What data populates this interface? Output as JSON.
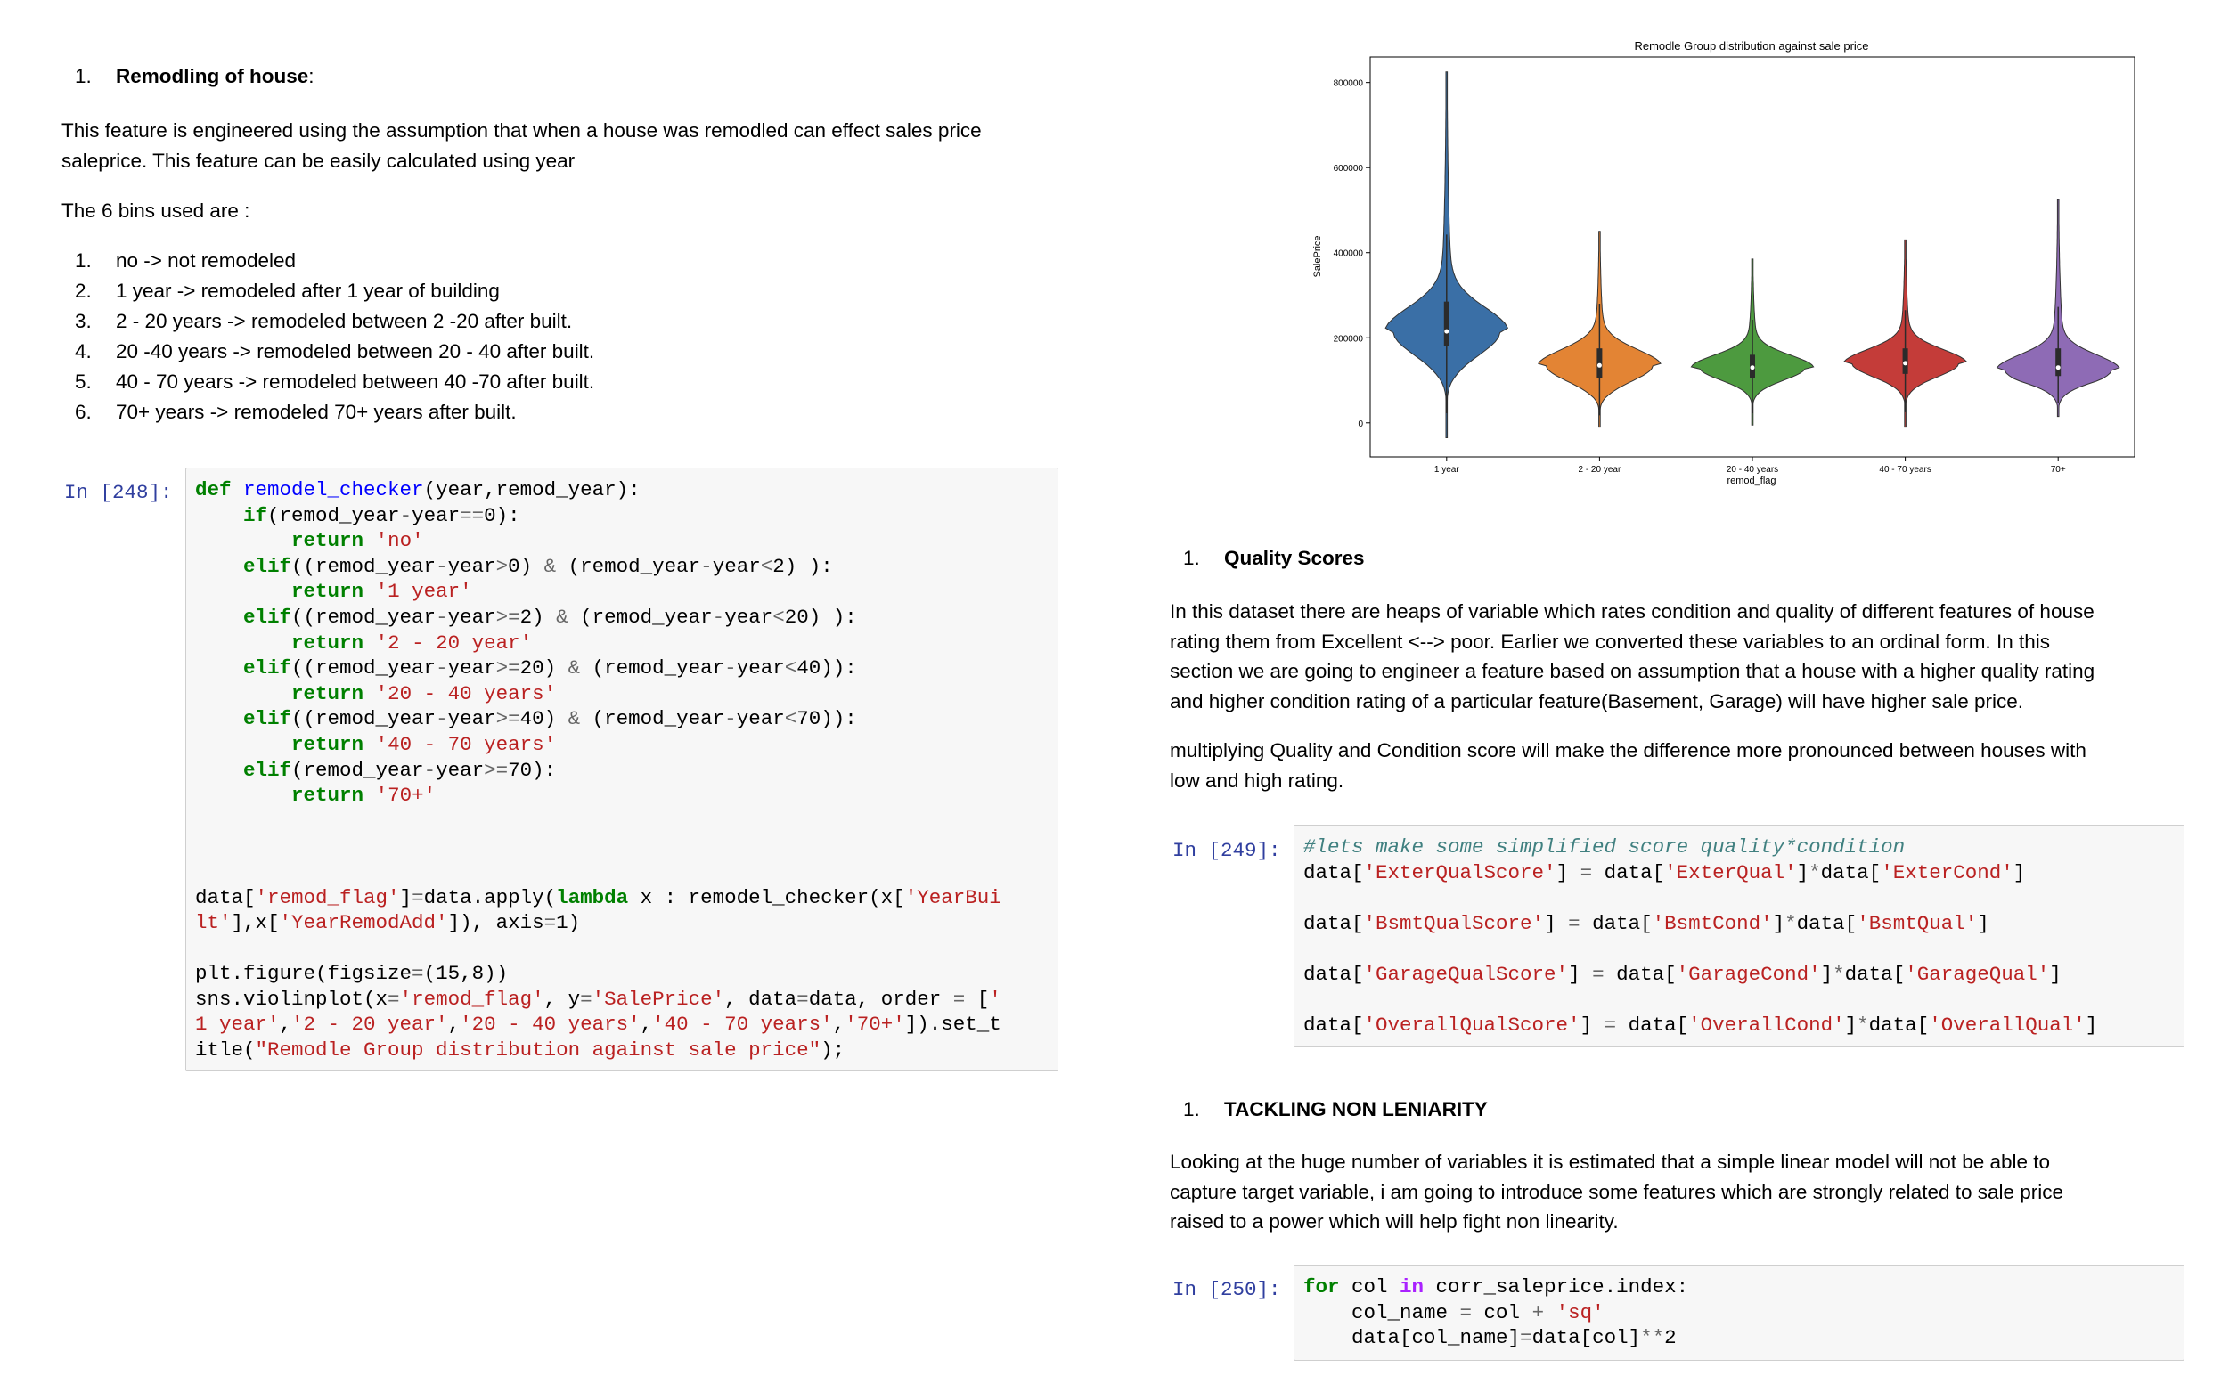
{
  "left": {
    "heading_num": "1.",
    "heading_bold": "Remodling of house",
    "heading_suffix": ":",
    "para1_line1": "This feature is engineered using the assumption that when a house was remodled can effect sales price",
    "para1_line2": "saleprice. This feature can be easily calculated using year",
    "para2": "The 6 bins used are :",
    "bins": [
      {
        "n": "1.",
        "t": "no -> not remodeled"
      },
      {
        "n": "2.",
        "t": "1 year -> remodeled after 1 year of building"
      },
      {
        "n": "3.",
        "t": "2 - 20 years -> remodeled between 2 -20 after built."
      },
      {
        "n": "4.",
        "t": "20 -40 years -> remodeled between 20 - 40 after built."
      },
      {
        "n": "5.",
        "t": "40 - 70 years -> remodeled between 40 -70 after built."
      },
      {
        "n": "6.",
        "t": "70+ years -> remodeled 70+ years after built."
      }
    ],
    "cell_prompt": "In [248]:"
  },
  "right": {
    "q_heading_num": "1.",
    "q_heading": "Quality Scores",
    "q_para1": [
      "In this dataset there are heaps of variable which rates condition and quality of different features of house",
      "rating them from Excellent <--> poor. Earlier we converted these variables to an ordinal form. In this",
      "section we are going to engineer a feature based on assumption that a house with a higher quality rating",
      "and higher condition rating of a particular feature(Basement, Garage) will have higher sale price."
    ],
    "q_para2": [
      "multiplying Quality and Condition score will make the difference more pronounced between houses with",
      "low and high rating."
    ],
    "cell249_prompt": "In [249]:",
    "t_heading_num": "1.",
    "t_heading": "TACKLING NON LENIARITY",
    "t_para": [
      "Looking at the huge number of variables it is estimated that a simple linear model will not be able to",
      "capture target variable, i am going to introduce some features which are strongly related to sale price",
      "raised to a power which will help fight non linearity."
    ],
    "cell250_prompt": "In [250]:"
  },
  "chart_data": {
    "type": "violin",
    "title": "Remodle Group distribution against sale price",
    "xlabel": "remod_flag",
    "ylabel": "SalePrice",
    "ylim": [
      -80000,
      860000
    ],
    "yticks": [
      0,
      200000,
      400000,
      600000,
      800000
    ],
    "ytick_labels": [
      "0",
      "200000",
      "400000",
      "600000",
      "800000"
    ],
    "categories": [
      "1 year",
      "2 - 20 year",
      "20 - 40 years",
      "40 - 70 years",
      "70+"
    ],
    "series": [
      {
        "category": "1 year",
        "color": "#3a6fa6",
        "min": -35000,
        "q1": 180000,
        "median": 215000,
        "q3": 285000,
        "max": 825000,
        "mode": 215000
      },
      {
        "category": "2 - 20 year",
        "color": "#e38434",
        "min": -10000,
        "q1": 105000,
        "median": 135000,
        "q3": 175000,
        "max": 450000,
        "mode": 135000
      },
      {
        "category": "20 - 40 years",
        "color": "#4d9a3f",
        "min": -5000,
        "q1": 105000,
        "median": 130000,
        "q3": 160000,
        "max": 385000,
        "mode": 130000
      },
      {
        "category": "40 - 70 years",
        "color": "#c43c39",
        "min": -10000,
        "q1": 115000,
        "median": 140000,
        "q3": 175000,
        "max": 430000,
        "mode": 140000
      },
      {
        "category": "70+",
        "color": "#8e6bb5",
        "min": 15000,
        "q1": 110000,
        "median": 130000,
        "q3": 175000,
        "max": 525000,
        "mode": 125000
      }
    ],
    "colors": {
      "axis": "#000000",
      "grid": "none"
    }
  }
}
